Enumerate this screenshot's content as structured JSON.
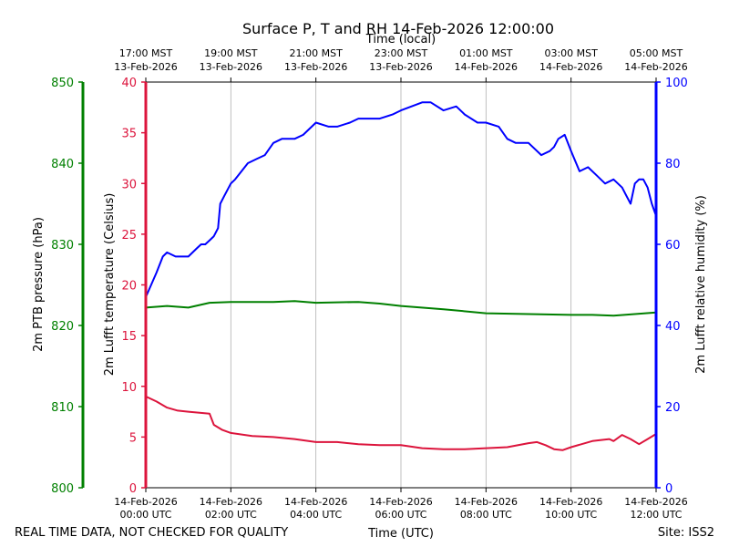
{
  "chart_data": {
    "type": "line",
    "title": "Surface P, T and RH 14-Feb-2026 12:00:00",
    "xlabel_bottom": "Time (UTC)",
    "xlabel_top": "Time (local)",
    "x_range_hours": [
      0,
      12
    ],
    "gridlines_x_hours": [
      2,
      4,
      6,
      8,
      10
    ],
    "bottom_ticks": [
      {
        "hour": 0,
        "line1": "14-Feb-2026",
        "line2": "00:00 UTC"
      },
      {
        "hour": 2,
        "line1": "14-Feb-2026",
        "line2": "02:00 UTC"
      },
      {
        "hour": 4,
        "line1": "14-Feb-2026",
        "line2": "04:00 UTC"
      },
      {
        "hour": 6,
        "line1": "14-Feb-2026",
        "line2": "06:00 UTC"
      },
      {
        "hour": 8,
        "line1": "14-Feb-2026",
        "line2": "08:00 UTC"
      },
      {
        "hour": 10,
        "line1": "14-Feb-2026",
        "line2": "10:00 UTC"
      },
      {
        "hour": 12,
        "line1": "14-Feb-2026",
        "line2": "12:00 UTC"
      }
    ],
    "top_ticks": [
      {
        "hour": 0,
        "line1": "17:00 MST",
        "line2": "13-Feb-2026"
      },
      {
        "hour": 2,
        "line1": "19:00 MST",
        "line2": "13-Feb-2026"
      },
      {
        "hour": 4,
        "line1": "21:00 MST",
        "line2": "13-Feb-2026"
      },
      {
        "hour": 6,
        "line1": "23:00 MST",
        "line2": "13-Feb-2026"
      },
      {
        "hour": 8,
        "line1": "01:00 MST",
        "line2": "14-Feb-2026"
      },
      {
        "hour": 10,
        "line1": "03:00 MST",
        "line2": "14-Feb-2026"
      },
      {
        "hour": 12,
        "line1": "05:00 MST",
        "line2": "14-Feb-2026"
      }
    ],
    "axes": {
      "pressure": {
        "label": "2m PTB pressure (hPa)",
        "color": "#008000",
        "range": [
          800,
          850
        ],
        "ticks": [
          800,
          810,
          820,
          830,
          840,
          850
        ]
      },
      "temperature": {
        "label": "2m Lufft temperature (Celsius)",
        "color": "#dc143c",
        "range": [
          0,
          40
        ],
        "ticks": [
          0,
          5,
          10,
          15,
          20,
          25,
          30,
          35,
          40
        ]
      },
      "humidity": {
        "label": "2m Lufft relative humidity (%)",
        "color": "#0000ff",
        "range": [
          0,
          100
        ],
        "ticks": [
          0,
          20,
          40,
          60,
          80,
          100
        ]
      }
    },
    "series": [
      {
        "name": "pressure",
        "axis": "pressure",
        "color": "#008000",
        "hours": [
          0,
          0.5,
          1,
          1.5,
          2,
          3,
          3.5,
          4,
          5,
          5.5,
          6,
          7,
          8,
          9,
          10,
          10.5,
          11,
          12
        ],
        "values": [
          822.2,
          822.4,
          822.2,
          822.8,
          822.9,
          822.9,
          823.0,
          822.8,
          822.9,
          822.7,
          822.4,
          822.0,
          821.5,
          821.4,
          821.3,
          821.3,
          821.2,
          821.6
        ]
      },
      {
        "name": "temperature",
        "axis": "temperature",
        "color": "#dc143c",
        "hours": [
          0,
          0.25,
          0.5,
          0.75,
          1,
          1.5,
          1.6,
          1.8,
          2,
          2.5,
          3,
          3.5,
          4,
          4.5,
          5,
          5.5,
          6,
          6.5,
          7,
          7.5,
          8,
          8.5,
          9,
          9.2,
          9.4,
          9.6,
          9.8,
          10,
          10.5,
          10.9,
          11,
          11.2,
          11.4,
          11.6,
          11.8,
          12
        ],
        "values": [
          9.0,
          8.5,
          7.9,
          7.6,
          7.5,
          7.3,
          6.2,
          5.7,
          5.4,
          5.1,
          5.0,
          4.8,
          4.5,
          4.5,
          4.3,
          4.2,
          4.2,
          3.9,
          3.8,
          3.8,
          3.9,
          4.0,
          4.4,
          4.5,
          4.2,
          3.8,
          3.7,
          4.0,
          4.6,
          4.8,
          4.6,
          5.2,
          4.8,
          4.3,
          4.8,
          5.3
        ]
      },
      {
        "name": "humidity",
        "axis": "humidity",
        "color": "#0000ff",
        "hours": [
          0,
          0.25,
          0.4,
          0.5,
          0.7,
          1,
          1.2,
          1.3,
          1.4,
          1.5,
          1.6,
          1.7,
          1.75,
          1.85,
          1.95,
          2,
          2.1,
          2.25,
          2.4,
          2.6,
          2.8,
          3,
          3.2,
          3.5,
          3.7,
          4,
          4.3,
          4.5,
          4.8,
          5,
          5.3,
          5.5,
          5.8,
          6,
          6.5,
          6.7,
          7,
          7.3,
          7.5,
          7.8,
          8,
          8.3,
          8.5,
          8.7,
          9,
          9.3,
          9.5,
          9.6,
          9.7,
          9.85,
          10,
          10.2,
          10.4,
          10.6,
          10.8,
          11,
          11.2,
          11.3,
          11.4,
          11.5,
          11.6,
          11.7,
          11.8,
          11.9,
          12
        ],
        "values": [
          47,
          53,
          57,
          58,
          57,
          57,
          59,
          60,
          60,
          61,
          62,
          64,
          70,
          72,
          74,
          75,
          76,
          78,
          80,
          81,
          82,
          85,
          86,
          86,
          87,
          90,
          89,
          89,
          90,
          91,
          91,
          91,
          92,
          93,
          95,
          95,
          93,
          94,
          92,
          90,
          90,
          89,
          86,
          85,
          85,
          82,
          83,
          84,
          86,
          87,
          83,
          78,
          79,
          77,
          75,
          76,
          74,
          72,
          70,
          75,
          76,
          76,
          74,
          70,
          67
        ]
      }
    ],
    "footer_left": "REAL TIME DATA, NOT CHECKED FOR QUALITY",
    "footer_right": "Site: ISS2"
  }
}
